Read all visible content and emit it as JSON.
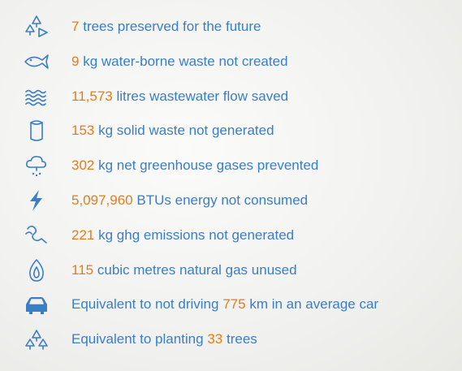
{
  "items": [
    {
      "number": "7",
      "after": "trees preserved for the future"
    },
    {
      "number": "9",
      "after": "kg water-borne waste not created"
    },
    {
      "number": "11,573",
      "after": "litres wastewater flow saved"
    },
    {
      "number": "153",
      "after": "kg solid waste not generated"
    },
    {
      "number": "302",
      "after": "kg net greenhouse gases prevented"
    },
    {
      "number": "5,097,960",
      "after": "BTUs energy not consumed"
    },
    {
      "number": "221",
      "after": "kg ghg emissions not generated"
    },
    {
      "number": "115",
      "after": "cubic metres natural gas unused"
    },
    {
      "before": "Equivalent to not driving",
      "number": "775",
      "after": "km in an average car"
    },
    {
      "before": "Equivalent to planting",
      "number": "33",
      "after": "trees"
    }
  ]
}
